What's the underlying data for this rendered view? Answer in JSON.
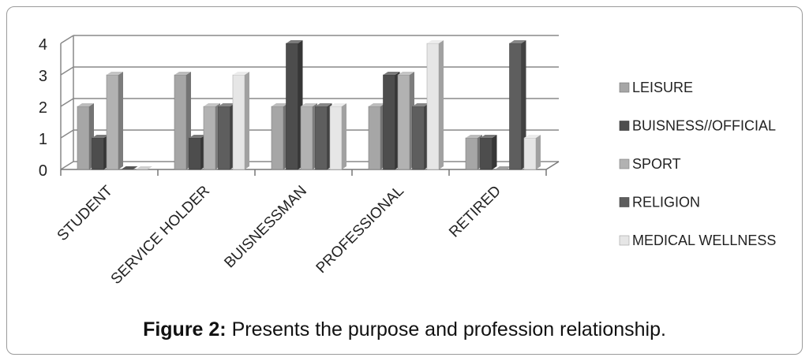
{
  "caption": {
    "label": "Figure 2:",
    "text": " Presents the purpose and profession relationship."
  },
  "chart_data": {
    "type": "bar",
    "style": "3d-clustered-column",
    "categories": [
      "STUDENT",
      "SERVICE HOLDER",
      "BUISNESSMAN",
      "PROFESSIONAL",
      "RETIRED"
    ],
    "series": [
      {
        "name": "LEISURE",
        "color": "#a6a6a6",
        "values": [
          2,
          3,
          2,
          2,
          1
        ]
      },
      {
        "name": "BUISNESS//OFFICIAL",
        "color": "#4d4d4d",
        "values": [
          1,
          1,
          4,
          3,
          1
        ]
      },
      {
        "name": "SPORT",
        "color": "#b2b2b2",
        "values": [
          3,
          2,
          2,
          3,
          0
        ]
      },
      {
        "name": "RELIGION",
        "color": "#5e5e5e",
        "values": [
          0,
          2,
          2,
          2,
          4
        ]
      },
      {
        "name": "MEDICAL  WELLNESS",
        "color": "#e6e6e6",
        "values": [
          0,
          3,
          2,
          4,
          1
        ]
      }
    ],
    "yticks": [
      "0",
      "1",
      "2",
      "3",
      "4"
    ],
    "ylim": [
      0,
      4
    ],
    "grid": true,
    "legend": "right"
  }
}
